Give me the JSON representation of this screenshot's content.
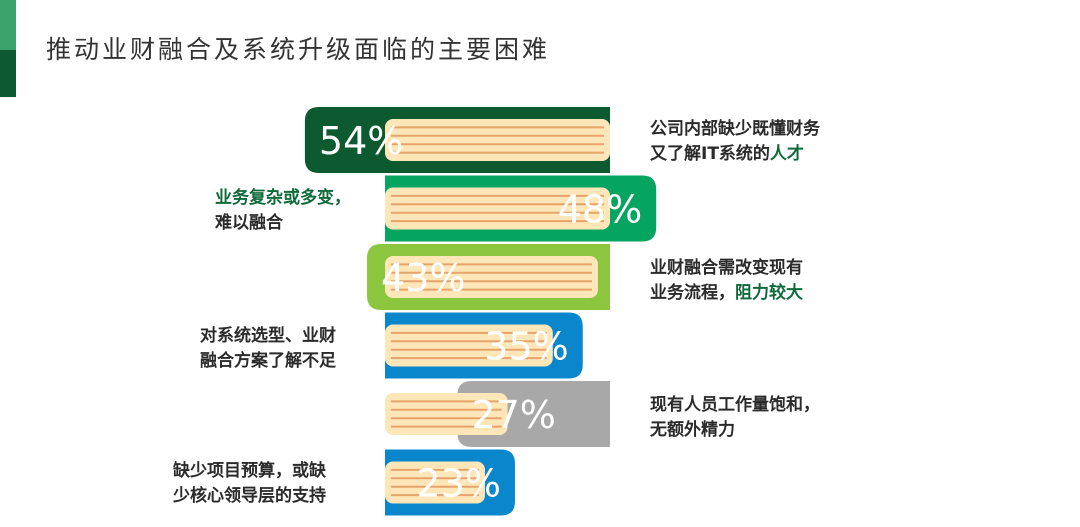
{
  "title": "推动业财融合及系统升级面临的主要困难",
  "colors": {
    "accent_top": "#3aa26a",
    "accent_bottom": "#0d5a30",
    "book_fill": "#fde6b8",
    "book_line": "#e6a36a"
  },
  "chart_data": {
    "type": "bar",
    "title": "推动业财融合及系统升级面临的主要困难",
    "xlabel": "",
    "ylabel": "",
    "xlim": [
      0,
      100
    ],
    "categories": [
      "公司内部缺少既懂财务又了解IT系统的人才",
      "业务复杂或多变，难以融合",
      "业财融合需改变现有业务流程，阻力较大",
      "对系统选型、业财融合方案了解不足",
      "现有人员工作量饱和，无额外精力",
      "缺少项目预算，或缺少核心领导层的支持"
    ],
    "values": [
      54,
      48,
      43,
      35,
      27,
      23
    ],
    "labels": [
      "54%",
      "48%",
      "43%",
      "35%",
      "27%",
      "23%"
    ],
    "colors": [
      "#0d5a30",
      "#06a461",
      "#8cc63f",
      "#0a86cc",
      "#a8a8a8",
      "#0a86cc"
    ],
    "directions": [
      "left",
      "right",
      "left",
      "right",
      "left",
      "right"
    ]
  },
  "annotations": [
    {
      "line1": "公司内部缺少既懂财务",
      "line2_pre": "又了解IT系统的",
      "line2_hl": "人才",
      "line1_hl": ""
    },
    {
      "line1": "",
      "line1_hl": "业务复杂或多变，",
      "line2_pre": "难以融合",
      "line2_hl": ""
    },
    {
      "line1": "业财融合需改变现有",
      "line1_hl": "",
      "line2_pre": "业务流程，",
      "line2_hl": "阻力较大"
    },
    {
      "line1": "对系统选型、业财",
      "line1_hl": "",
      "line2_pre": "融合方案了解不足",
      "line2_hl": ""
    },
    {
      "line1": "现有人员工作量饱和，",
      "line1_hl": "",
      "line2_pre": "无额外精力",
      "line2_hl": ""
    },
    {
      "line1": "缺少项目预算，或缺",
      "line1_hl": "",
      "line2_pre": "少核心领导层的支持",
      "line2_hl": ""
    }
  ]
}
